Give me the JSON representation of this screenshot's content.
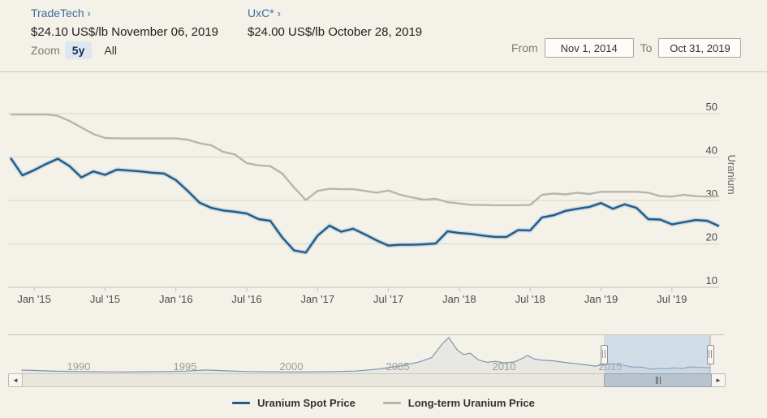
{
  "header": {
    "sources": [
      {
        "name": "TradeTech",
        "arrow": "›",
        "price_line": "$24.10 US$/lb November 06, 2019"
      },
      {
        "name": "UxC*",
        "arrow": "›",
        "price_line": "$24.00 US$/lb October 28, 2019"
      }
    ],
    "zoom": {
      "label": "Zoom",
      "options": [
        {
          "label": "5y",
          "selected": true
        },
        {
          "label": "All",
          "selected": false
        }
      ]
    },
    "range": {
      "from_label": "From",
      "from_value": "Nov 1, 2014",
      "to_label": "To",
      "to_value": "Oct 31, 2019"
    }
  },
  "chart_data": {
    "type": "line",
    "title": "Uranium spot vs long-term price, Nov 2014 - Oct 2019",
    "x_unit": "month",
    "x_start": "Nov 2014",
    "x_end": "Oct 2019",
    "x_tick_labels": [
      "Jan '15",
      "Jul '15",
      "Jan '16",
      "Jul '16",
      "Jan '17",
      "Jul '17",
      "Jan '18",
      "Jul '18",
      "Jan '19",
      "Jul '19"
    ],
    "x_tick_month_index": [
      2,
      8,
      14,
      20,
      26,
      32,
      38,
      44,
      50,
      56
    ],
    "ylabel": "Uranium",
    "y_ticks": [
      50,
      40,
      30,
      20,
      10
    ],
    "ylim": [
      10,
      52
    ],
    "grid": true,
    "legend_position": "bottom",
    "series": [
      {
        "name": "Uranium Spot Price",
        "color": "#1f5c8a",
        "values": [
          39.8,
          35.8,
          37.0,
          38.4,
          39.6,
          37.9,
          35.3,
          36.7,
          35.9,
          37.1,
          36.9,
          36.7,
          36.4,
          36.2,
          34.7,
          32.2,
          29.5,
          28.3,
          27.7,
          27.4,
          27.0,
          25.7,
          25.3,
          21.5,
          18.5,
          18.0,
          21.9,
          24.2,
          22.8,
          23.5,
          22.2,
          20.8,
          19.6,
          19.8,
          19.8,
          19.9,
          20.1,
          22.9,
          22.5,
          22.3,
          21.9,
          21.6,
          21.6,
          23.2,
          23.1,
          26.1,
          26.6,
          27.6,
          28.1,
          28.5,
          29.4,
          28.1,
          29.1,
          28.3,
          25.7,
          25.6,
          24.5,
          25.0,
          25.5,
          25.3,
          24.1
        ]
      },
      {
        "name": "Long-term Uranium Price",
        "color": "#b8b5ac",
        "values": [
          49.8,
          49.8,
          49.8,
          49.8,
          49.5,
          48.3,
          46.8,
          45.3,
          44.4,
          44.3,
          44.3,
          44.3,
          44.3,
          44.3,
          44.3,
          44.0,
          43.2,
          42.7,
          41.2,
          40.6,
          38.6,
          38.1,
          37.9,
          36.2,
          33.0,
          30.1,
          32.2,
          32.7,
          32.6,
          32.6,
          32.2,
          31.8,
          32.3,
          31.3,
          30.7,
          30.2,
          30.4,
          29.6,
          29.3,
          29.0,
          29.0,
          28.9,
          28.9,
          28.9,
          29.0,
          31.3,
          31.6,
          31.4,
          31.8,
          31.5,
          32.0,
          32.0,
          32.0,
          32.0,
          31.8,
          31.0,
          30.9,
          31.3,
          31.0,
          30.9,
          31.0
        ]
      }
    ]
  },
  "navigator": {
    "type": "area",
    "x_tick_labels": [
      "1990",
      "1995",
      "2000",
      "2005",
      "2010",
      "2015"
    ],
    "x_range_years": [
      1987.3,
      2019.7
    ],
    "selection_years": [
      2014.7,
      2019.7
    ],
    "line_color": "#7d96ae",
    "series": {
      "name": "Uranium Spot Price full history",
      "points": [
        [
          1987.3,
          15
        ],
        [
          1988,
          13.5
        ],
        [
          1989,
          11
        ],
        [
          1990,
          9.8
        ],
        [
          1991,
          9
        ],
        [
          1992,
          8.2
        ],
        [
          1993,
          9.2
        ],
        [
          1994,
          9.6
        ],
        [
          1995,
          11.2
        ],
        [
          1996,
          15.5
        ],
        [
          1997,
          12
        ],
        [
          1998,
          9.8
        ],
        [
          1999,
          9.2
        ],
        [
          2000,
          8.2
        ],
        [
          2001,
          8.8
        ],
        [
          2002,
          9.8
        ],
        [
          2003,
          11.5
        ],
        [
          2004,
          18
        ],
        [
          2005,
          29
        ],
        [
          2006,
          45
        ],
        [
          2006.6,
          62
        ],
        [
          2007.1,
          113
        ],
        [
          2007.4,
          136
        ],
        [
          2007.8,
          90
        ],
        [
          2008.1,
          73
        ],
        [
          2008.4,
          78
        ],
        [
          2008.8,
          53
        ],
        [
          2009.2,
          44
        ],
        [
          2009.6,
          48
        ],
        [
          2010,
          42
        ],
        [
          2010.5,
          46
        ],
        [
          2010.9,
          60
        ],
        [
          2011.1,
          70
        ],
        [
          2011.4,
          57
        ],
        [
          2011.8,
          52
        ],
        [
          2012.3,
          50
        ],
        [
          2012.8,
          44
        ],
        [
          2013.3,
          40
        ],
        [
          2013.8,
          35
        ],
        [
          2014.3,
          30
        ],
        [
          2014.7,
          36
        ],
        [
          2015.1,
          38
        ],
        [
          2015.5,
          35
        ],
        [
          2016,
          27
        ],
        [
          2016.5,
          26
        ],
        [
          2016.95,
          18.5
        ],
        [
          2017.3,
          22.5
        ],
        [
          2017.6,
          20.5
        ],
        [
          2017.95,
          23.5
        ],
        [
          2018.4,
          21.5
        ],
        [
          2018.75,
          27.5
        ],
        [
          2019.1,
          25.5
        ],
        [
          2019.4,
          25.2
        ],
        [
          2019.7,
          24
        ]
      ]
    },
    "scrollbar": {
      "left_arrow": "◄",
      "right_arrow": "►"
    }
  },
  "legend": {
    "items": [
      {
        "label": "Uranium Spot Price",
        "color": "#1f5c8a"
      },
      {
        "label": "Long-term Uranium Price",
        "color": "#b8b5ac"
      }
    ]
  },
  "colors": {
    "background": "#f4f1e8",
    "gridline": "#d9d6cc",
    "axis_line": "#c3c0b7",
    "axis_text": "#4d4d4d",
    "axis_title": "#666666",
    "link": "#3a6d9f",
    "zoom_selected_bg": "#dde7f2",
    "selection_overlay": "rgba(160,193,226,0.42)",
    "navigator_year_label": "#9b9d96",
    "spot_halo": "rgba(125,165,200,0.32)"
  }
}
